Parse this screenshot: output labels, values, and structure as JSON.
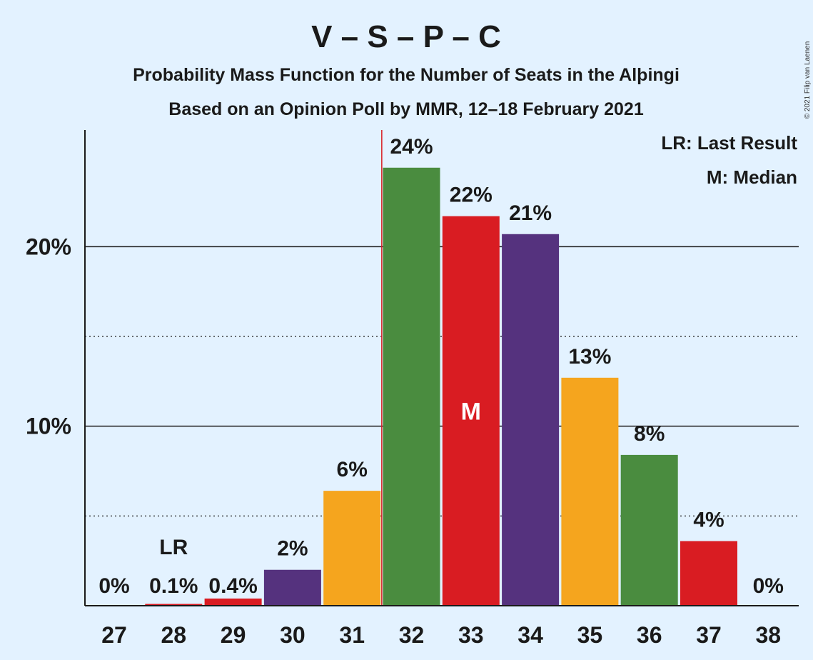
{
  "chart_data": {
    "type": "bar",
    "title": "V – S – P – C",
    "subtitle1": "Probability Mass Function for the Number of Seats in the Alþingi",
    "subtitle2": "Based on an Opinion Poll by MMR, 12–18 February 2021",
    "legend_lr": "LR: Last Result",
    "legend_m": "M: Median",
    "copyright": "© 2021 Filip van Laenen",
    "categories": [
      "27",
      "28",
      "29",
      "30",
      "31",
      "32",
      "33",
      "34",
      "35",
      "36",
      "37",
      "38"
    ],
    "values": [
      0,
      0.1,
      0.4,
      2,
      6.4,
      24.4,
      21.7,
      20.7,
      12.7,
      8.4,
      3.6,
      0
    ],
    "labels": [
      "0%",
      "0.1%",
      "0.4%",
      "2%",
      "6%",
      "24%",
      "22%",
      "21%",
      "13%",
      "8%",
      "4%",
      "0%"
    ],
    "colors": [
      "#4a8c3f",
      "#d91c22",
      "#d91c22",
      "#55327e",
      "#f5a51e",
      "#4a8c3f",
      "#d91c22",
      "#55327e",
      "#f5a51e",
      "#4a8c3f",
      "#d91c22",
      "#55327e"
    ],
    "last_result_category": "28",
    "last_result_label": "LR",
    "median_category": "33",
    "median_label": "M",
    "ylim": [
      0,
      26.5
    ],
    "yticks_major": [
      10,
      20
    ],
    "yticks_minor": [
      5,
      15
    ],
    "ytick_labels": [
      "10%",
      "20%"
    ],
    "vline_between": [
      "31",
      "32"
    ],
    "vline_color": "#d91c22",
    "grid": true,
    "legend_position": "top-right"
  }
}
